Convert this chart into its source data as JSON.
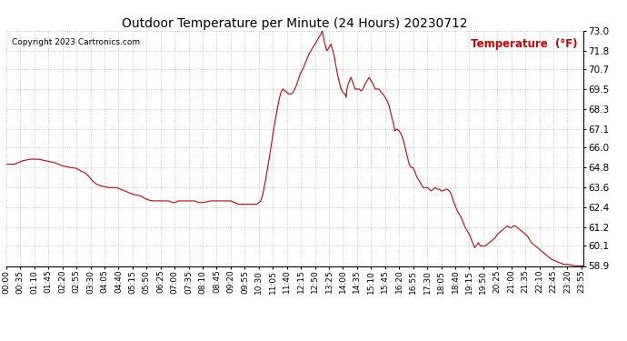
{
  "title": "Outdoor Temperature per Minute (24 Hours) 20230712",
  "copyright_text": "Copyright 2023 Cartronics.com",
  "legend_label": "Temperature  (°F)",
  "line_color": "#cc0000",
  "background_color": "#ffffff",
  "grid_color": "#999999",
  "ylim": [
    58.9,
    73.0
  ],
  "yticks": [
    58.9,
    60.1,
    61.2,
    62.4,
    63.6,
    64.8,
    66.0,
    67.1,
    68.3,
    69.5,
    70.7,
    71.8,
    73.0
  ],
  "xlim": [
    0,
    1439
  ],
  "xtick_positions": [
    0,
    35,
    70,
    105,
    140,
    175,
    210,
    245,
    280,
    315,
    350,
    385,
    420,
    455,
    490,
    525,
    560,
    595,
    630,
    665,
    700,
    735,
    770,
    805,
    840,
    875,
    910,
    945,
    980,
    1015,
    1050,
    1085,
    1120,
    1155,
    1190,
    1225,
    1260,
    1295,
    1330,
    1365,
    1400,
    1435
  ],
  "xtick_labels": [
    "00:00",
    "00:35",
    "01:10",
    "01:45",
    "02:20",
    "02:55",
    "03:30",
    "04:05",
    "04:40",
    "05:15",
    "05:50",
    "06:25",
    "07:00",
    "07:35",
    "08:10",
    "08:45",
    "09:20",
    "09:55",
    "10:30",
    "11:05",
    "11:40",
    "12:15",
    "12:50",
    "13:25",
    "14:00",
    "14:35",
    "15:10",
    "15:45",
    "16:20",
    "16:55",
    "17:30",
    "18:05",
    "18:40",
    "19:15",
    "19:50",
    "20:25",
    "21:00",
    "21:35",
    "22:10",
    "22:45",
    "23:20",
    "23:55"
  ],
  "key_points": [
    [
      0,
      65.0
    ],
    [
      20,
      65.0
    ],
    [
      40,
      65.2
    ],
    [
      60,
      65.3
    ],
    [
      80,
      65.3
    ],
    [
      100,
      65.2
    ],
    [
      120,
      65.1
    ],
    [
      140,
      64.9
    ],
    [
      150,
      64.85
    ],
    [
      160,
      64.8
    ],
    [
      175,
      64.75
    ],
    [
      185,
      64.6
    ],
    [
      195,
      64.5
    ],
    [
      205,
      64.3
    ],
    [
      215,
      64.0
    ],
    [
      225,
      63.8
    ],
    [
      235,
      63.7
    ],
    [
      245,
      63.65
    ],
    [
      255,
      63.6
    ],
    [
      265,
      63.6
    ],
    [
      275,
      63.6
    ],
    [
      285,
      63.5
    ],
    [
      295,
      63.4
    ],
    [
      305,
      63.3
    ],
    [
      315,
      63.2
    ],
    [
      325,
      63.15
    ],
    [
      335,
      63.1
    ],
    [
      345,
      62.95
    ],
    [
      355,
      62.85
    ],
    [
      365,
      62.8
    ],
    [
      375,
      62.8
    ],
    [
      385,
      62.8
    ],
    [
      395,
      62.8
    ],
    [
      405,
      62.8
    ],
    [
      415,
      62.7
    ],
    [
      420,
      62.7
    ],
    [
      425,
      62.75
    ],
    [
      430,
      62.8
    ],
    [
      435,
      62.8
    ],
    [
      440,
      62.8
    ],
    [
      450,
      62.8
    ],
    [
      460,
      62.8
    ],
    [
      470,
      62.8
    ],
    [
      480,
      62.7
    ],
    [
      490,
      62.7
    ],
    [
      500,
      62.75
    ],
    [
      510,
      62.8
    ],
    [
      520,
      62.8
    ],
    [
      530,
      62.8
    ],
    [
      540,
      62.8
    ],
    [
      550,
      62.8
    ],
    [
      560,
      62.8
    ],
    [
      570,
      62.7
    ],
    [
      580,
      62.6
    ],
    [
      590,
      62.6
    ],
    [
      600,
      62.6
    ],
    [
      610,
      62.6
    ],
    [
      615,
      62.6
    ],
    [
      620,
      62.6
    ],
    [
      625,
      62.6
    ],
    [
      630,
      62.7
    ],
    [
      635,
      62.8
    ],
    [
      640,
      63.2
    ],
    [
      645,
      63.8
    ],
    [
      650,
      64.5
    ],
    [
      655,
      65.2
    ],
    [
      660,
      66.0
    ],
    [
      665,
      66.8
    ],
    [
      670,
      67.5
    ],
    [
      675,
      68.2
    ],
    [
      680,
      68.8
    ],
    [
      685,
      69.3
    ],
    [
      690,
      69.5
    ],
    [
      695,
      69.4
    ],
    [
      700,
      69.3
    ],
    [
      705,
      69.2
    ],
    [
      710,
      69.2
    ],
    [
      715,
      69.3
    ],
    [
      720,
      69.5
    ],
    [
      725,
      69.8
    ],
    [
      730,
      70.2
    ],
    [
      735,
      70.5
    ],
    [
      740,
      70.7
    ],
    [
      745,
      71.0
    ],
    [
      750,
      71.3
    ],
    [
      755,
      71.6
    ],
    [
      760,
      71.8
    ],
    [
      765,
      72.0
    ],
    [
      770,
      72.2
    ],
    [
      775,
      72.4
    ],
    [
      780,
      72.6
    ],
    [
      785,
      72.8
    ],
    [
      788,
      73.0
    ],
    [
      790,
      72.8
    ],
    [
      792,
      72.5
    ],
    [
      795,
      72.2
    ],
    [
      797,
      72.0
    ],
    [
      800,
      71.8
    ],
    [
      803,
      71.9
    ],
    [
      805,
      72.0
    ],
    [
      808,
      72.1
    ],
    [
      810,
      72.2
    ],
    [
      812,
      72.0
    ],
    [
      815,
      71.8
    ],
    [
      818,
      71.5
    ],
    [
      820,
      71.2
    ],
    [
      823,
      70.8
    ],
    [
      826,
      70.4
    ],
    [
      830,
      70.0
    ],
    [
      835,
      69.5
    ],
    [
      840,
      69.3
    ],
    [
      845,
      69.2
    ],
    [
      848,
      69.0
    ],
    [
      850,
      69.5
    ],
    [
      853,
      69.8
    ],
    [
      856,
      70.0
    ],
    [
      860,
      70.2
    ],
    [
      863,
      70.0
    ],
    [
      866,
      69.8
    ],
    [
      870,
      69.5
    ],
    [
      875,
      69.5
    ],
    [
      880,
      69.5
    ],
    [
      885,
      69.4
    ],
    [
      890,
      69.5
    ],
    [
      895,
      69.8
    ],
    [
      900,
      70.0
    ],
    [
      905,
      70.2
    ],
    [
      910,
      70.0
    ],
    [
      915,
      69.8
    ],
    [
      920,
      69.5
    ],
    [
      925,
      69.5
    ],
    [
      930,
      69.5
    ],
    [
      935,
      69.3
    ],
    [
      940,
      69.2
    ],
    [
      945,
      69.0
    ],
    [
      950,
      68.8
    ],
    [
      955,
      68.5
    ],
    [
      960,
      68.0
    ],
    [
      965,
      67.5
    ],
    [
      970,
      67.0
    ],
    [
      975,
      67.1
    ],
    [
      980,
      67.0
    ],
    [
      985,
      66.8
    ],
    [
      990,
      66.5
    ],
    [
      995,
      66.0
    ],
    [
      1000,
      65.5
    ],
    [
      1005,
      65.0
    ],
    [
      1010,
      64.8
    ],
    [
      1015,
      64.8
    ],
    [
      1020,
      64.5
    ],
    [
      1025,
      64.2
    ],
    [
      1030,
      64.0
    ],
    [
      1035,
      63.8
    ],
    [
      1040,
      63.6
    ],
    [
      1045,
      63.6
    ],
    [
      1050,
      63.6
    ],
    [
      1055,
      63.5
    ],
    [
      1060,
      63.4
    ],
    [
      1065,
      63.5
    ],
    [
      1070,
      63.6
    ],
    [
      1075,
      63.5
    ],
    [
      1080,
      63.5
    ],
    [
      1085,
      63.4
    ],
    [
      1090,
      63.4
    ],
    [
      1095,
      63.5
    ],
    [
      1100,
      63.5
    ],
    [
      1105,
      63.4
    ],
    [
      1110,
      63.2
    ],
    [
      1115,
      62.8
    ],
    [
      1120,
      62.5
    ],
    [
      1125,
      62.2
    ],
    [
      1130,
      62.0
    ],
    [
      1135,
      61.8
    ],
    [
      1140,
      61.5
    ],
    [
      1145,
      61.2
    ],
    [
      1150,
      61.0
    ],
    [
      1155,
      60.8
    ],
    [
      1160,
      60.5
    ],
    [
      1165,
      60.2
    ],
    [
      1168,
      60.0
    ],
    [
      1172,
      60.1
    ],
    [
      1175,
      60.2
    ],
    [
      1178,
      60.3
    ],
    [
      1180,
      60.2
    ],
    [
      1183,
      60.1
    ],
    [
      1185,
      60.1
    ],
    [
      1190,
      60.1
    ],
    [
      1195,
      60.1
    ],
    [
      1200,
      60.2
    ],
    [
      1205,
      60.3
    ],
    [
      1210,
      60.4
    ],
    [
      1215,
      60.5
    ],
    [
      1220,
      60.6
    ],
    [
      1225,
      60.8
    ],
    [
      1230,
      60.9
    ],
    [
      1235,
      61.0
    ],
    [
      1240,
      61.1
    ],
    [
      1245,
      61.2
    ],
    [
      1250,
      61.3
    ],
    [
      1255,
      61.2
    ],
    [
      1258,
      61.2
    ],
    [
      1260,
      61.2
    ],
    [
      1265,
      61.3
    ],
    [
      1270,
      61.3
    ],
    [
      1275,
      61.2
    ],
    [
      1280,
      61.1
    ],
    [
      1285,
      61.0
    ],
    [
      1290,
      60.9
    ],
    [
      1295,
      60.8
    ],
    [
      1300,
      60.7
    ],
    [
      1305,
      60.5
    ],
    [
      1310,
      60.3
    ],
    [
      1315,
      60.2
    ],
    [
      1320,
      60.1
    ],
    [
      1325,
      60.0
    ],
    [
      1330,
      59.9
    ],
    [
      1335,
      59.8
    ],
    [
      1340,
      59.7
    ],
    [
      1345,
      59.6
    ],
    [
      1350,
      59.5
    ],
    [
      1360,
      59.3
    ],
    [
      1370,
      59.2
    ],
    [
      1380,
      59.1
    ],
    [
      1390,
      59.0
    ],
    [
      1400,
      59.0
    ],
    [
      1410,
      58.95
    ],
    [
      1420,
      58.9
    ],
    [
      1430,
      58.9
    ],
    [
      1439,
      58.9
    ]
  ]
}
